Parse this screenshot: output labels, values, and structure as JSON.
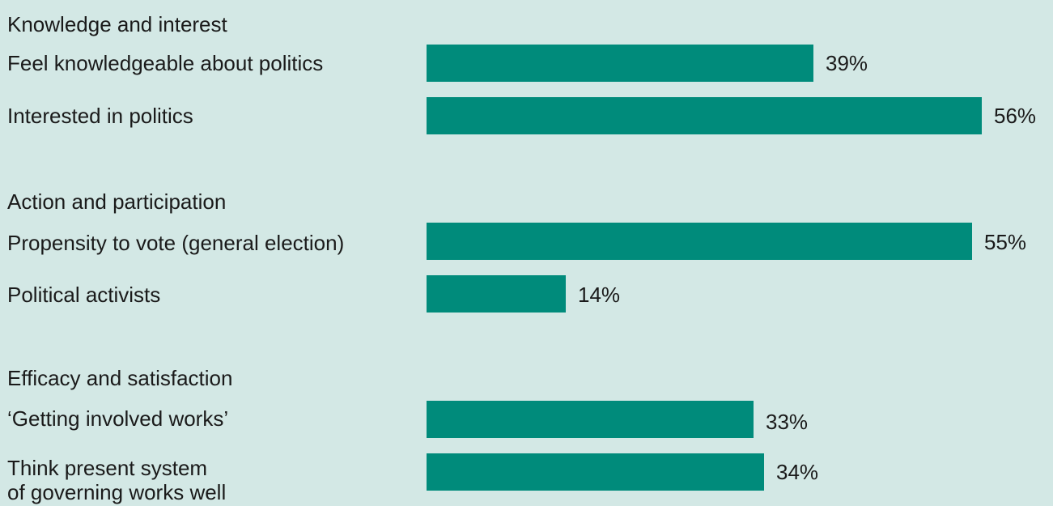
{
  "colors": {
    "background": "#d3e8e5",
    "bar": "#008b7b",
    "text": "#1a1a1a"
  },
  "chart_data": {
    "type": "bar",
    "orientation": "horizontal",
    "value_suffix": "%",
    "groups": [
      {
        "title": "Knowledge and interest",
        "items": [
          {
            "label": "Feel knowledgeable about politics",
            "value": 39
          },
          {
            "label": "Interested in politics",
            "value": 56
          }
        ]
      },
      {
        "title": "Action and participation",
        "items": [
          {
            "label": "Propensity to vote (general election)",
            "value": 55
          },
          {
            "label": "Political activists",
            "value": 14
          }
        ]
      },
      {
        "title": "Efficacy and satisfaction",
        "items": [
          {
            "label": "‘Getting involved works’",
            "value": 33
          },
          {
            "label": "Think present system\nof governing works well",
            "value": 34
          }
        ]
      }
    ],
    "value_labels": {
      "g0i0": "39%",
      "g0i1": "56%",
      "g1i0": "55%",
      "g1i1": "14%",
      "g2i0": "33%",
      "g2i1": "34%"
    }
  }
}
